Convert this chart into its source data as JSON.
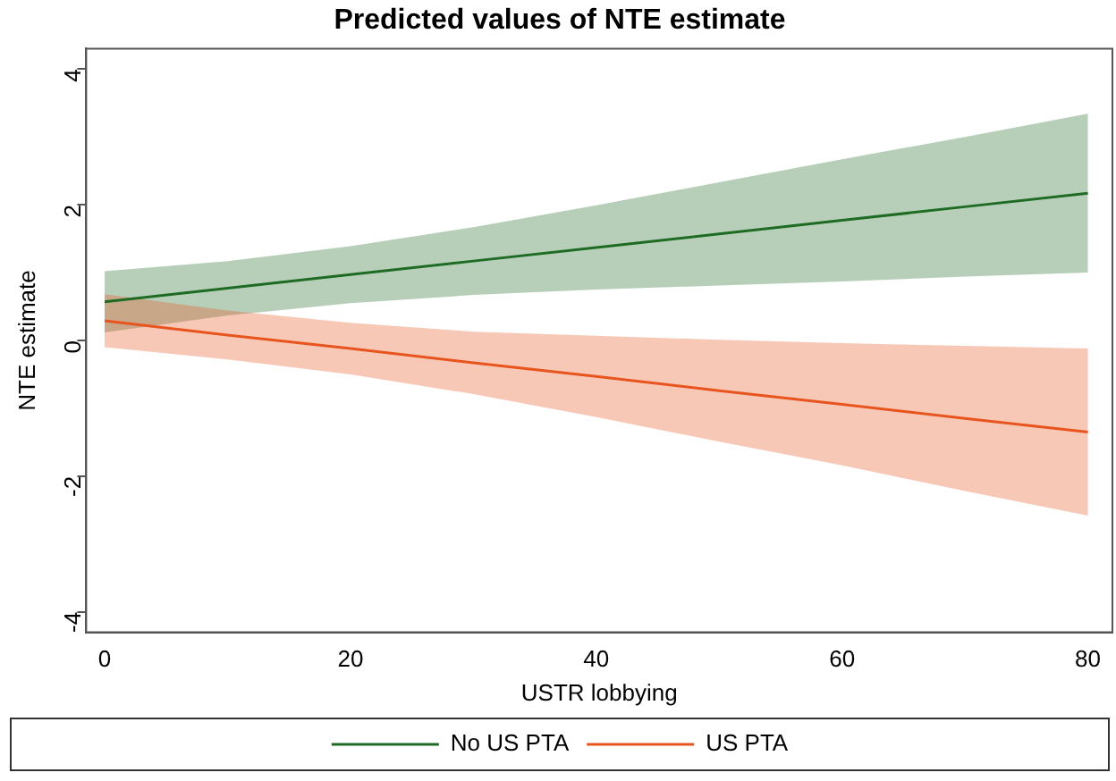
{
  "chart_data": {
    "type": "line",
    "title": "Predicted values of NTE estimate",
    "xlabel": "USTR lobbying",
    "ylabel": "NTE estimate",
    "x": [
      0,
      10,
      20,
      30,
      40,
      50,
      60,
      70,
      80
    ],
    "series": [
      {
        "name": "No US PTA",
        "color": "#1e6b24",
        "values": [
          0.57,
          0.77,
          0.97,
          1.17,
          1.37,
          1.57,
          1.77,
          1.97,
          2.17
        ],
        "lower": [
          0.12,
          0.37,
          0.55,
          0.67,
          0.75,
          0.81,
          0.87,
          0.94,
          1.0
        ],
        "upper": [
          1.02,
          1.17,
          1.39,
          1.67,
          1.99,
          2.33,
          2.67,
          3.0,
          3.34
        ]
      },
      {
        "name": "US PTA",
        "color": "#e8541e",
        "values": [
          0.29,
          0.08,
          -0.12,
          -0.33,
          -0.53,
          -0.74,
          -0.94,
          -1.15,
          -1.35
        ],
        "lower": [
          -0.1,
          -0.28,
          -0.5,
          -0.79,
          -1.13,
          -1.49,
          -1.84,
          -2.22,
          -2.58
        ],
        "upper": [
          0.68,
          0.44,
          0.26,
          0.13,
          0.07,
          0.01,
          -0.04,
          -0.08,
          -0.12
        ]
      }
    ],
    "xlim": [
      -1.5,
      82
    ],
    "ylim": [
      -4.3,
      4.3
    ],
    "xticks": [
      0,
      20,
      40,
      60,
      80
    ],
    "yticks": [
      -4,
      -2,
      0,
      2,
      4
    ],
    "grid": false,
    "legend": "bottom",
    "marker": "none",
    "line_style": "solid"
  }
}
